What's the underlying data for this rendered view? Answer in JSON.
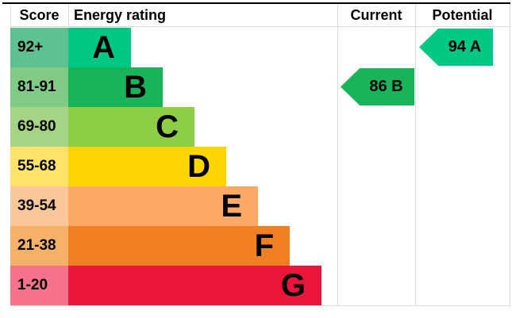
{
  "chart_data": {
    "type": "bar",
    "title": "",
    "headers": {
      "score": "Score",
      "rating": "Energy rating",
      "current": "Current",
      "potential": "Potential"
    },
    "bands": [
      {
        "score": "92+",
        "letter": "A",
        "bar_color": "#00c781",
        "score_bg": "#5fc092"
      },
      {
        "score": "81-91",
        "letter": "B",
        "bar_color": "#19b459",
        "score_bg": "#80cc86"
      },
      {
        "score": "69-80",
        "letter": "C",
        "bar_color": "#8dce46",
        "score_bg": "#a5d584"
      },
      {
        "score": "55-68",
        "letter": "D",
        "bar_color": "#ffd500",
        "score_bg": "#ffe36a"
      },
      {
        "score": "39-54",
        "letter": "E",
        "bar_color": "#fcaa65",
        "score_bg": "#fac79a"
      },
      {
        "score": "21-38",
        "letter": "F",
        "bar_color": "#ef8023",
        "score_bg": "#f6b168"
      },
      {
        "score": "1-20",
        "letter": "G",
        "bar_color": "#e9153b",
        "score_bg": "#f4728c"
      }
    ],
    "current": {
      "value": 86,
      "band": "B",
      "color": "#19b459"
    },
    "potential": {
      "value": 94,
      "band": "A",
      "color": "#00c781"
    }
  }
}
